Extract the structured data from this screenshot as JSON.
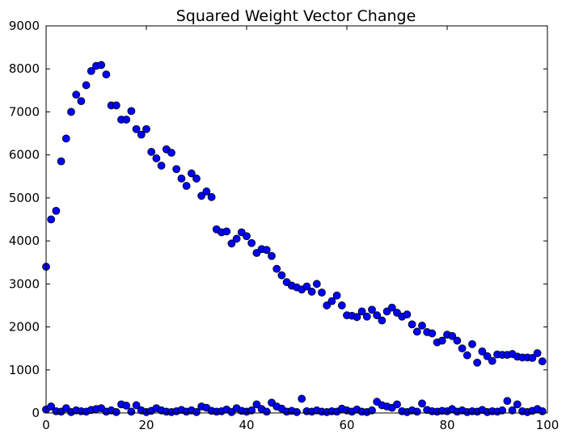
{
  "chart_data": {
    "type": "scatter",
    "title": "Squared Weight Vector Change",
    "xlabel": "",
    "ylabel": "",
    "xlim": [
      0,
      100
    ],
    "ylim": [
      0,
      9000
    ],
    "x_ticks": [
      0,
      20,
      40,
      60,
      80,
      100
    ],
    "y_ticks": [
      0,
      1000,
      2000,
      3000,
      4000,
      5000,
      6000,
      7000,
      8000,
      9000
    ],
    "grid": false,
    "legend": "none",
    "marker_color": "#0000ff",
    "series": [
      {
        "x": [
          0,
          1,
          2,
          3,
          4,
          5,
          6,
          7,
          8,
          9,
          10,
          11,
          12,
          13,
          14,
          15,
          16,
          17,
          18,
          19,
          20,
          21,
          22,
          23,
          24,
          25,
          26,
          27,
          28,
          29,
          30,
          31,
          32,
          33,
          34,
          35,
          36,
          37,
          38,
          39,
          40,
          41,
          42,
          43,
          44,
          45,
          46,
          47,
          48,
          49,
          50,
          51,
          52,
          53,
          54,
          55,
          56,
          57,
          58,
          59,
          60,
          61,
          62,
          63,
          64,
          65,
          66,
          67,
          68,
          69,
          70,
          71,
          72,
          73,
          74,
          75,
          76,
          77,
          78,
          79,
          80,
          81,
          82,
          83,
          84,
          85,
          86,
          87,
          88,
          89,
          90,
          91,
          92,
          93,
          94,
          95,
          96,
          97,
          98,
          99
        ],
        "y": [
          3400,
          4500,
          4700,
          5850,
          6380,
          7000,
          7400,
          7250,
          7620,
          7950,
          8070,
          8090,
          7870,
          7150,
          7150,
          6820,
          6820,
          7020,
          6600,
          6470,
          6600,
          6070,
          5920,
          5750,
          6130,
          6050,
          5670,
          5450,
          5280,
          5570,
          5450,
          5050,
          5150,
          5020,
          4270,
          4200,
          4220,
          3940,
          4050,
          4200,
          4110,
          3950,
          3720,
          3810,
          3790,
          3650,
          3350,
          3200,
          3040,
          2960,
          2920,
          2870,
          2940,
          2820,
          3000,
          2800,
          2500,
          2600,
          2730,
          2500,
          2270,
          2260,
          2230,
          2360,
          2240,
          2400,
          2270,
          2150,
          2360,
          2450,
          2330,
          2240,
          2290,
          2060,
          1890,
          2030,
          1880,
          1850,
          1640,
          1680,
          1820,
          1790,
          1680,
          1500,
          1340,
          1600,
          1170,
          1430,
          1320,
          1210,
          1360,
          1350,
          1350,
          1370,
          1310,
          1290,
          1290,
          1280,
          1390,
          1200
        ]
      },
      {
        "x": [
          0,
          1,
          2,
          3,
          4,
          5,
          6,
          7,
          8,
          9,
          10,
          11,
          12,
          13,
          14,
          15,
          16,
          17,
          18,
          19,
          20,
          21,
          22,
          23,
          24,
          25,
          26,
          27,
          28,
          29,
          30,
          31,
          32,
          33,
          34,
          35,
          36,
          37,
          38,
          39,
          40,
          41,
          42,
          43,
          44,
          45,
          46,
          47,
          48,
          49,
          50,
          51,
          52,
          53,
          54,
          55,
          56,
          57,
          58,
          59,
          60,
          61,
          62,
          63,
          64,
          65,
          66,
          67,
          68,
          69,
          70,
          71,
          72,
          73,
          74,
          75,
          76,
          77,
          78,
          79,
          80,
          81,
          82,
          83,
          84,
          85,
          86,
          87,
          88,
          89,
          90,
          91,
          92,
          93,
          94,
          95,
          96,
          97,
          98,
          99
        ],
        "y": [
          80,
          150,
          40,
          30,
          110,
          20,
          60,
          40,
          30,
          70,
          90,
          110,
          30,
          60,
          20,
          200,
          170,
          30,
          180,
          60,
          20,
          50,
          110,
          60,
          30,
          20,
          40,
          70,
          30,
          60,
          20,
          150,
          120,
          50,
          30,
          40,
          80,
          20,
          110,
          50,
          30,
          60,
          200,
          90,
          30,
          240,
          150,
          100,
          30,
          50,
          20,
          330,
          40,
          30,
          60,
          30,
          20,
          40,
          30,
          100,
          60,
          30,
          80,
          30,
          20,
          60,
          260,
          180,
          150,
          120,
          200,
          40,
          20,
          60,
          30,
          220,
          70,
          40,
          30,
          50,
          40,
          90,
          30,
          60,
          20,
          40,
          30,
          70,
          20,
          40,
          30,
          60,
          280,
          60,
          200,
          40,
          20,
          50,
          90,
          40
        ]
      }
    ]
  }
}
